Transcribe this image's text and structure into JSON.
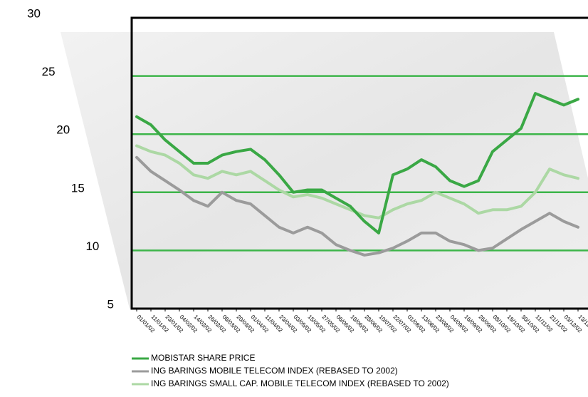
{
  "chart_data": {
    "type": "line",
    "categories": [
      "01/01/02",
      "11/01/02",
      "23/01/02",
      "04/02/02",
      "14/02/02",
      "26/02/02",
      "08/03/02",
      "20/03/02",
      "01/04/02",
      "11/04/02",
      "23/04/02",
      "03/05/02",
      "15/05/02",
      "27/05/02",
      "06/06/02",
      "18/06/02",
      "28/06/02",
      "10/07/02",
      "22/07/02",
      "01/08/02",
      "13/08/02",
      "23/08/02",
      "04/09/02",
      "16/09/02",
      "26/09/02",
      "08/10/02",
      "18/10/02",
      "30/10/02",
      "11/11/02",
      "21/11/02",
      "03/12/02",
      "13/12/02"
    ],
    "series": [
      {
        "name": "MOBISTAR SHARE PRICE",
        "color": "#3aa845",
        "values": [
          21.5,
          20.8,
          19.5,
          18.5,
          17.5,
          17.5,
          18.2,
          18.5,
          18.7,
          17.8,
          16.5,
          15.0,
          15.2,
          15.2,
          14.5,
          13.8,
          12.5,
          11.5,
          16.5,
          17.0,
          17.8,
          17.2,
          16.0,
          15.5,
          16.0,
          18.5,
          19.5,
          20.5,
          23.5,
          23.0,
          22.5,
          23.0
        ]
      },
      {
        "name": "ING BARINGS MOBILE TELECOM INDEX (REBASED TO 2002)",
        "color": "#9b9b9b",
        "values": [
          18.0,
          16.8,
          16.0,
          15.2,
          14.3,
          13.8,
          15.0,
          14.3,
          14.0,
          13.0,
          12.0,
          11.5,
          12.0,
          11.5,
          10.5,
          10.0,
          9.6,
          9.8,
          10.2,
          10.8,
          11.5,
          11.5,
          10.8,
          10.5,
          10.0,
          10.2,
          11.0,
          11.8,
          12.5,
          13.2,
          12.5,
          12.0
        ]
      },
      {
        "name": "ING BARINGS SMALL CAP. MOBILE TELECOM INDEX (REBASED TO 2002)",
        "color": "#acd8a4",
        "values": [
          19.0,
          18.5,
          18.2,
          17.5,
          16.5,
          16.2,
          16.8,
          16.5,
          16.8,
          16.0,
          15.2,
          14.6,
          14.8,
          14.5,
          14.0,
          13.5,
          13.0,
          12.8,
          13.5,
          14.0,
          14.3,
          15.0,
          14.5,
          14.0,
          13.2,
          13.5,
          13.5,
          13.8,
          15.0,
          17.0,
          16.5,
          16.2
        ]
      }
    ],
    "ylim": [
      5,
      30
    ],
    "yticks": [
      5,
      10,
      15,
      20,
      25,
      30
    ],
    "grid": true,
    "grid_color": "#3db54a",
    "legend": "bottom-left"
  }
}
